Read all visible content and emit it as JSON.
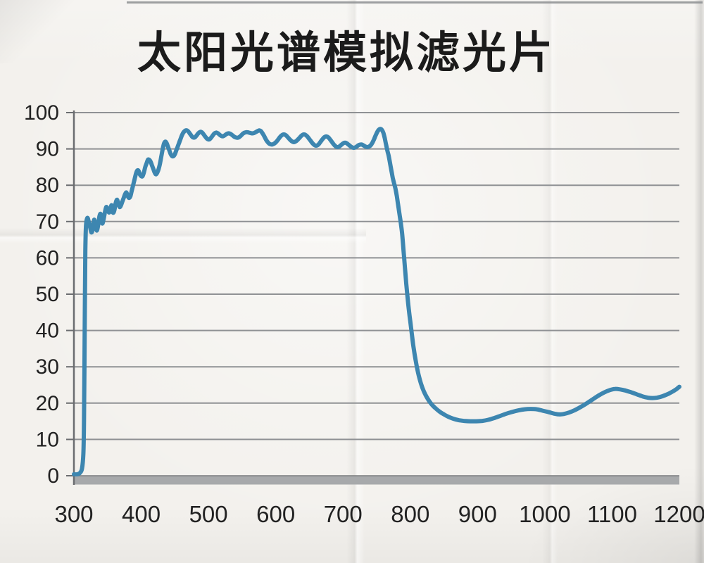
{
  "chart_data": {
    "type": "line",
    "title": "太阳光谱模拟滤光片",
    "xlabel": "",
    "ylabel": "",
    "xlim": [
      300,
      1200
    ],
    "ylim": [
      0,
      100
    ],
    "xticks": [
      300,
      400,
      500,
      600,
      700,
      800,
      900,
      1000,
      1100,
      1200
    ],
    "yticks": [
      0,
      10,
      20,
      30,
      40,
      50,
      60,
      70,
      80,
      90,
      100
    ],
    "grid": "horizontal-only",
    "legend": "none",
    "series": [
      {
        "name": "transmission-curve",
        "color": "#3d86b0",
        "points": [
          [
            300,
            0.4
          ],
          [
            305,
            0.4
          ],
          [
            309,
            0.8
          ],
          [
            312,
            2
          ],
          [
            314,
            6
          ],
          [
            315,
            15
          ],
          [
            316,
            40
          ],
          [
            317,
            62
          ],
          [
            318,
            69
          ],
          [
            320,
            71
          ],
          [
            322,
            70
          ],
          [
            324,
            68.5
          ],
          [
            326,
            67
          ],
          [
            328,
            68
          ],
          [
            330,
            70.5
          ],
          [
            332,
            69
          ],
          [
            334,
            67.5
          ],
          [
            336,
            69
          ],
          [
            338,
            71.5
          ],
          [
            340,
            72
          ],
          [
            342,
            69.5
          ],
          [
            344,
            70.5
          ],
          [
            346,
            72.5
          ],
          [
            348,
            74
          ],
          [
            350,
            73.5
          ],
          [
            352,
            72.5
          ],
          [
            354,
            73
          ],
          [
            356,
            74.5
          ],
          [
            358,
            72.5
          ],
          [
            360,
            73
          ],
          [
            362,
            75
          ],
          [
            364,
            76
          ],
          [
            366,
            75
          ],
          [
            368,
            74
          ],
          [
            370,
            74.5
          ],
          [
            372,
            75.5
          ],
          [
            374,
            76.5
          ],
          [
            376,
            77.5
          ],
          [
            378,
            78
          ],
          [
            380,
            77
          ],
          [
            382,
            76.5
          ],
          [
            384,
            77
          ],
          [
            386,
            78.5
          ],
          [
            388,
            80
          ],
          [
            390,
            81.5
          ],
          [
            392,
            83
          ],
          [
            394,
            84
          ],
          [
            396,
            84
          ],
          [
            398,
            83
          ],
          [
            400,
            82.5
          ],
          [
            402,
            82.5
          ],
          [
            404,
            83.5
          ],
          [
            406,
            85
          ],
          [
            408,
            86
          ],
          [
            410,
            87
          ],
          [
            412,
            87
          ],
          [
            414,
            86.5
          ],
          [
            416,
            85.5
          ],
          [
            418,
            84.5
          ],
          [
            420,
            83.5
          ],
          [
            422,
            83
          ],
          [
            424,
            83.5
          ],
          [
            426,
            84.5
          ],
          [
            428,
            86
          ],
          [
            430,
            88
          ],
          [
            432,
            90
          ],
          [
            434,
            91.5
          ],
          [
            436,
            92
          ],
          [
            438,
            91.5
          ],
          [
            440,
            90.5
          ],
          [
            442,
            89.5
          ],
          [
            444,
            88.5
          ],
          [
            446,
            88
          ],
          [
            448,
            88
          ],
          [
            450,
            88.5
          ],
          [
            452,
            89.5
          ],
          [
            454,
            90.5
          ],
          [
            456,
            91.5
          ],
          [
            458,
            92.5
          ],
          [
            460,
            93.5
          ],
          [
            462,
            94.3
          ],
          [
            464,
            94.8
          ],
          [
            466,
            95.1
          ],
          [
            468,
            95.1
          ],
          [
            470,
            94.8
          ],
          [
            472,
            94.3
          ],
          [
            474,
            93.8
          ],
          [
            476,
            93.3
          ],
          [
            478,
            93.1
          ],
          [
            480,
            93.2
          ],
          [
            482,
            93.6
          ],
          [
            484,
            94.1
          ],
          [
            486,
            94.5
          ],
          [
            488,
            94.7
          ],
          [
            490,
            94.6
          ],
          [
            492,
            94.2
          ],
          [
            494,
            93.7
          ],
          [
            496,
            93.2
          ],
          [
            498,
            92.8
          ],
          [
            500,
            92.6
          ],
          [
            502,
            92.7
          ],
          [
            504,
            93.1
          ],
          [
            506,
            93.6
          ],
          [
            508,
            94.1
          ],
          [
            510,
            94.4
          ],
          [
            512,
            94.5
          ],
          [
            514,
            94.3
          ],
          [
            516,
            94
          ],
          [
            518,
            93.7
          ],
          [
            520,
            93.5
          ],
          [
            522,
            93.5
          ],
          [
            524,
            93.7
          ],
          [
            526,
            94
          ],
          [
            528,
            94.2
          ],
          [
            530,
            94.3
          ],
          [
            532,
            94.2
          ],
          [
            534,
            94
          ],
          [
            536,
            93.7
          ],
          [
            538,
            93.4
          ],
          [
            540,
            93.2
          ],
          [
            542,
            93.1
          ],
          [
            544,
            93.1
          ],
          [
            546,
            93.3
          ],
          [
            548,
            93.6
          ],
          [
            550,
            94
          ],
          [
            552,
            94.3
          ],
          [
            554,
            94.5
          ],
          [
            556,
            94.6
          ],
          [
            558,
            94.6
          ],
          [
            560,
            94.5
          ],
          [
            562,
            94.4
          ],
          [
            564,
            94.3
          ],
          [
            566,
            94.3
          ],
          [
            568,
            94.4
          ],
          [
            570,
            94.6
          ],
          [
            572,
            94.8
          ],
          [
            574,
            95
          ],
          [
            576,
            95.1
          ],
          [
            578,
            94.9
          ],
          [
            580,
            94.4
          ],
          [
            582,
            93.8
          ],
          [
            584,
            93.1
          ],
          [
            586,
            92.4
          ],
          [
            588,
            91.9
          ],
          [
            590,
            91.5
          ],
          [
            592,
            91.3
          ],
          [
            594,
            91.2
          ],
          [
            596,
            91.3
          ],
          [
            598,
            91.5
          ],
          [
            600,
            91.8
          ],
          [
            602,
            92.2
          ],
          [
            604,
            92.7
          ],
          [
            606,
            93.2
          ],
          [
            608,
            93.6
          ],
          [
            610,
            93.9
          ],
          [
            612,
            94
          ],
          [
            614,
            93.9
          ],
          [
            616,
            93.6
          ],
          [
            618,
            93.2
          ],
          [
            620,
            92.8
          ],
          [
            622,
            92.4
          ],
          [
            624,
            92.1
          ],
          [
            626,
            91.9
          ],
          [
            628,
            91.9
          ],
          [
            630,
            92.1
          ],
          [
            632,
            92.4
          ],
          [
            634,
            92.8
          ],
          [
            636,
            93.2
          ],
          [
            638,
            93.6
          ],
          [
            640,
            93.9
          ],
          [
            642,
            94
          ],
          [
            644,
            93.9
          ],
          [
            646,
            93.6
          ],
          [
            648,
            93.2
          ],
          [
            650,
            92.7
          ],
          [
            652,
            92.2
          ],
          [
            654,
            91.7
          ],
          [
            656,
            91.3
          ],
          [
            658,
            91
          ],
          [
            660,
            90.9
          ],
          [
            662,
            91
          ],
          [
            664,
            91.3
          ],
          [
            666,
            91.8
          ],
          [
            668,
            92.3
          ],
          [
            670,
            92.8
          ],
          [
            672,
            93.2
          ],
          [
            674,
            93.4
          ],
          [
            676,
            93.4
          ],
          [
            678,
            93.2
          ],
          [
            680,
            92.8
          ],
          [
            682,
            92.3
          ],
          [
            684,
            91.8
          ],
          [
            686,
            91.3
          ],
          [
            688,
            90.9
          ],
          [
            690,
            90.6
          ],
          [
            692,
            90.5
          ],
          [
            694,
            90.6
          ],
          [
            696,
            90.9
          ],
          [
            698,
            91.2
          ],
          [
            700,
            91.5
          ],
          [
            702,
            91.7
          ],
          [
            704,
            91.7
          ],
          [
            706,
            91.5
          ],
          [
            708,
            91.2
          ],
          [
            710,
            90.9
          ],
          [
            712,
            90.6
          ],
          [
            714,
            90.4
          ],
          [
            716,
            90.3
          ],
          [
            718,
            90.4
          ],
          [
            720,
            90.6
          ],
          [
            722,
            90.9
          ],
          [
            724,
            91.1
          ],
          [
            726,
            91.2
          ],
          [
            728,
            91.2
          ],
          [
            730,
            91
          ],
          [
            732,
            90.8
          ],
          [
            734,
            90.6
          ],
          [
            736,
            90.5
          ],
          [
            738,
            90.6
          ],
          [
            740,
            90.8
          ],
          [
            742,
            91.2
          ],
          [
            744,
            91.8
          ],
          [
            746,
            92.6
          ],
          [
            748,
            93.5
          ],
          [
            750,
            94.3
          ],
          [
            752,
            95
          ],
          [
            754,
            95.4
          ],
          [
            756,
            95.5
          ],
          [
            758,
            95.2
          ],
          [
            760,
            94.4
          ],
          [
            762,
            93
          ],
          [
            764,
            91.2
          ],
          [
            766,
            89.5
          ],
          [
            768,
            88
          ],
          [
            770,
            86
          ],
          [
            772,
            84
          ],
          [
            774,
            82
          ],
          [
            776,
            80.5
          ],
          [
            778,
            79
          ],
          [
            780,
            77
          ],
          [
            782,
            74.5
          ],
          [
            784,
            72
          ],
          [
            786,
            69.5
          ],
          [
            788,
            66.5
          ],
          [
            790,
            62
          ],
          [
            792,
            57.5
          ],
          [
            794,
            53
          ],
          [
            796,
            49
          ],
          [
            798,
            45.5
          ],
          [
            800,
            42.5
          ],
          [
            802,
            39.5
          ],
          [
            804,
            36.5
          ],
          [
            806,
            34
          ],
          [
            808,
            31.8
          ],
          [
            810,
            29.8
          ],
          [
            813,
            27.3
          ],
          [
            816,
            25.3
          ],
          [
            820,
            23.3
          ],
          [
            824,
            21.8
          ],
          [
            828,
            20.6
          ],
          [
            833,
            19.4
          ],
          [
            838,
            18.5
          ],
          [
            844,
            17.6
          ],
          [
            850,
            16.9
          ],
          [
            857,
            16.2
          ],
          [
            864,
            15.7
          ],
          [
            872,
            15.3
          ],
          [
            880,
            15.1
          ],
          [
            889,
            15
          ],
          [
            898,
            15
          ],
          [
            907,
            15.1
          ],
          [
            916,
            15.4
          ],
          [
            925,
            15.9
          ],
          [
            934,
            16.5
          ],
          [
            943,
            17.1
          ],
          [
            952,
            17.6
          ],
          [
            961,
            18
          ],
          [
            970,
            18.3
          ],
          [
            979,
            18.4
          ],
          [
            988,
            18.3
          ],
          [
            997,
            17.9
          ],
          [
            1006,
            17.5
          ],
          [
            1014,
            17.1
          ],
          [
            1021,
            16.9
          ],
          [
            1028,
            17
          ],
          [
            1036,
            17.4
          ],
          [
            1044,
            18
          ],
          [
            1053,
            18.9
          ],
          [
            1062,
            19.9
          ],
          [
            1071,
            21
          ],
          [
            1080,
            22.1
          ],
          [
            1089,
            23
          ],
          [
            1097,
            23.6
          ],
          [
            1104,
            23.9
          ],
          [
            1111,
            23.8
          ],
          [
            1119,
            23.5
          ],
          [
            1128,
            23
          ],
          [
            1137,
            22.4
          ],
          [
            1146,
            21.8
          ],
          [
            1153,
            21.5
          ],
          [
            1160,
            21.4
          ],
          [
            1167,
            21.5
          ],
          [
            1175,
            21.9
          ],
          [
            1183,
            22.5
          ],
          [
            1191,
            23.3
          ],
          [
            1196,
            23.9
          ],
          [
            1200,
            24.5
          ]
        ]
      }
    ]
  },
  "colors": {
    "curve": "#3d86b0",
    "gridline": "#8f9194",
    "axis": "#6b6d70",
    "baseline_bar": "#a7a9ab",
    "zero_line": "#7a7c7e",
    "title_text": "#1b1b1b",
    "tick_text": "#222222",
    "paper": "#f3f1ed"
  }
}
